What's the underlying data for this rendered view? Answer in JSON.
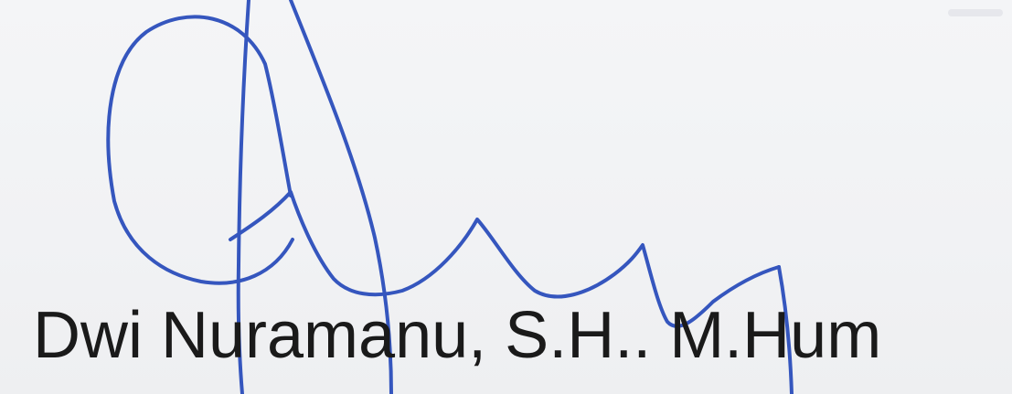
{
  "document": {
    "signer_name": "Dwi Nuramanu, S.H.. M.Hum"
  },
  "colors": {
    "ink": "#3556be",
    "text": "#1a1a1a",
    "paper": "#f2f3f5"
  }
}
